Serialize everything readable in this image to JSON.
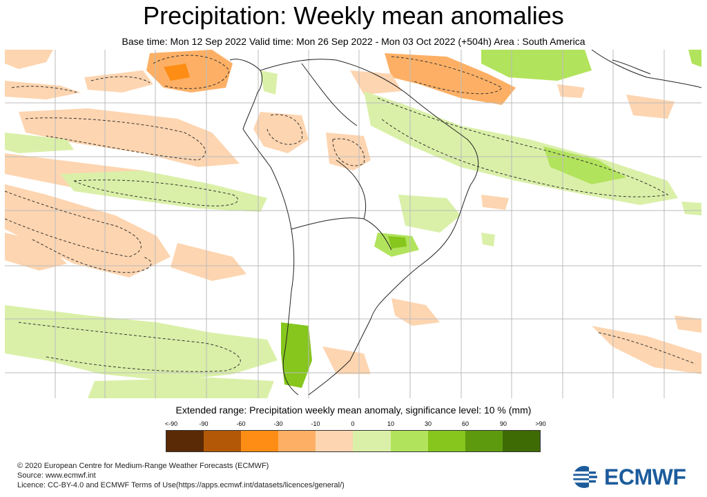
{
  "header": {
    "title": "Precipitation: Weekly mean anomalies",
    "subtitle": "Base time: Mon 12 Sep 2022 Valid time: Mon 26 Sep 2022 - Mon 03 Oct 2022 (+504h) Area : South America"
  },
  "map": {
    "region": "South America",
    "colors": {
      "land_outline": "#222222",
      "grid": "#bbbbbb",
      "significance_contour": "#333333"
    }
  },
  "legend": {
    "title": "Extended range: Precipitation weekly mean anomaly, significance level: 10 % (mm)",
    "labels": [
      "<-90",
      "-90",
      "-60",
      "-30",
      "-10",
      "0",
      "10",
      "30",
      "60",
      "90",
      ">90"
    ],
    "colors": [
      "#5a2a06",
      "#b35806",
      "#fd8d14",
      "#fdb065",
      "#fdd5b0",
      "#daf0a8",
      "#b2e35c",
      "#86c61d",
      "#5e9a0e",
      "#3f6b05"
    ]
  },
  "footer": {
    "copyright": "© 2020 European Centre for Medium-Range Weather Forecasts (ECMWF)",
    "source": "Source: www.ecmwf.int",
    "licence": "Licence: CC-BY-4.0 and ECMWF Terms of Use(https://apps.ecmwf.int/datasets/licences/general/)"
  },
  "logo": {
    "text": "ECMWF",
    "color": "#1d5c9c"
  }
}
